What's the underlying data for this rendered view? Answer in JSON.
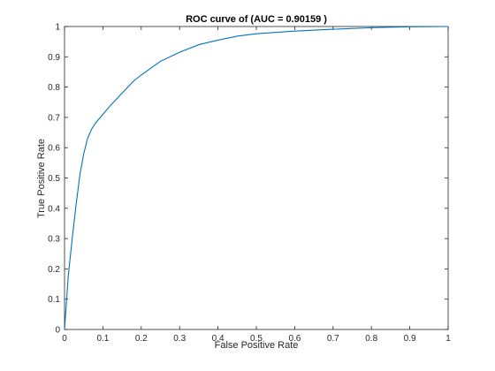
{
  "chart_data": {
    "type": "line",
    "title": "ROC curve of (AUC = 0.90159 )",
    "xlabel": "False Positive Rate",
    "ylabel": "True Positive Rate",
    "xlim": [
      0,
      1
    ],
    "ylim": [
      0,
      1
    ],
    "grid": false,
    "legend": "none",
    "line_color": "#0072bd",
    "x_ticks": [
      {
        "value": 0,
        "label": "0"
      },
      {
        "value": 0.1,
        "label": "0.1"
      },
      {
        "value": 0.2,
        "label": "0.2"
      },
      {
        "value": 0.3,
        "label": "0.3"
      },
      {
        "value": 0.4,
        "label": "0.4"
      },
      {
        "value": 0.5,
        "label": "0.5"
      },
      {
        "value": 0.6,
        "label": "0.6"
      },
      {
        "value": 0.7,
        "label": "0.7"
      },
      {
        "value": 0.8,
        "label": "0.8"
      },
      {
        "value": 0.9,
        "label": "0.9"
      },
      {
        "value": 1,
        "label": "1"
      }
    ],
    "y_ticks": [
      {
        "value": 0,
        "label": "0"
      },
      {
        "value": 0.1,
        "label": "0.1"
      },
      {
        "value": 0.2,
        "label": "0.2"
      },
      {
        "value": 0.3,
        "label": "0.3"
      },
      {
        "value": 0.4,
        "label": "0.4"
      },
      {
        "value": 0.5,
        "label": "0.5"
      },
      {
        "value": 0.6,
        "label": "0.6"
      },
      {
        "value": 0.7,
        "label": "0.7"
      },
      {
        "value": 0.8,
        "label": "0.8"
      },
      {
        "value": 0.9,
        "label": "0.9"
      },
      {
        "value": 1,
        "label": "1"
      }
    ],
    "series": [
      {
        "x": [
          0,
          0.005,
          0.01,
          0.02,
          0.03,
          0.04,
          0.05,
          0.06,
          0.07,
          0.08,
          0.1,
          0.12,
          0.15,
          0.18,
          0.2,
          0.25,
          0.3,
          0.35,
          0.4,
          0.45,
          0.5,
          0.6,
          0.7,
          0.8,
          0.9,
          1.0
        ],
        "y": [
          0,
          0.09,
          0.18,
          0.3,
          0.41,
          0.51,
          0.58,
          0.63,
          0.66,
          0.68,
          0.71,
          0.74,
          0.78,
          0.82,
          0.84,
          0.885,
          0.915,
          0.94,
          0.955,
          0.968,
          0.976,
          0.985,
          0.991,
          0.996,
          0.999,
          1.0
        ]
      }
    ]
  }
}
